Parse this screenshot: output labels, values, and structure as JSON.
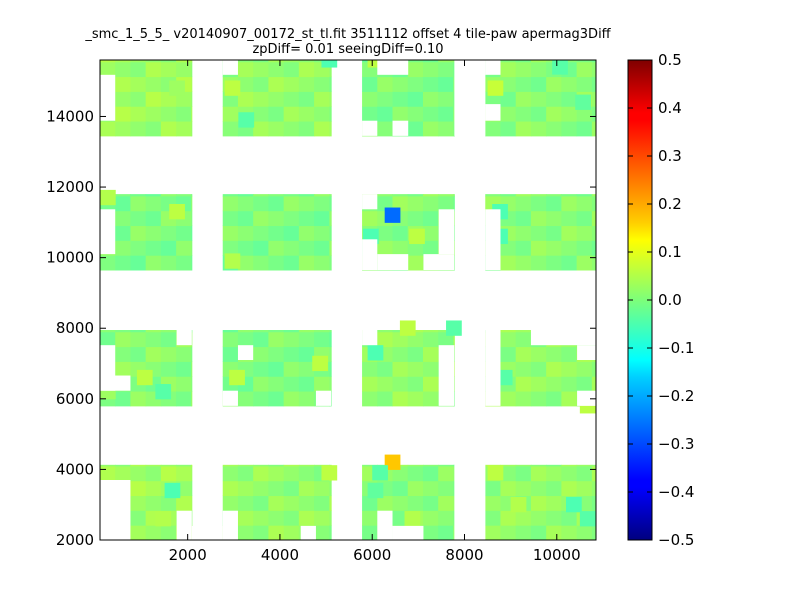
{
  "chart_data": {
    "type": "heatmap",
    "title_line1": "_smc_1_5_5_ v20140907_00172_st_tl.fit 3511112 offset 4 tile-paw apermag3Diff",
    "title_line2": "zpDiff= 0.01 seeingDiff=0.10",
    "xlim": [
      100,
      10850
    ],
    "ylim": [
      2000,
      15600
    ],
    "x_ticks": [
      2000,
      4000,
      6000,
      8000,
      10000
    ],
    "y_ticks": [
      2000,
      4000,
      6000,
      8000,
      10000,
      12000,
      14000
    ],
    "colorbar": {
      "colormap": "jet",
      "range": [
        -0.5,
        0.5
      ],
      "ticks": [
        -0.5,
        -0.4,
        -0.3,
        -0.2,
        -0.1,
        0.0,
        0.1,
        0.2,
        0.3,
        0.4,
        0.5
      ],
      "tick_labels": [
        "−0.5",
        "−0.4",
        "−0.3",
        "−0.2",
        "−0.1",
        "0.0",
        "0.1",
        "0.2",
        "0.3",
        "0.4",
        "0.5"
      ]
    },
    "cell_size": [
      330,
      420
    ],
    "blocks": [
      {
        "x0": 100,
        "x1": 2090,
        "y0": 2000,
        "y1": 4130,
        "value": 0.03
      },
      {
        "x0": 2760,
        "x1": 5110,
        "y0": 2000,
        "y1": 4130,
        "value": 0.02
      },
      {
        "x0": 5780,
        "x1": 7780,
        "y0": 2000,
        "y1": 4130,
        "value": 0.01
      },
      {
        "x0": 8450,
        "x1": 10850,
        "y0": 2000,
        "y1": 4130,
        "value": 0.02
      },
      {
        "x0": 100,
        "x1": 2090,
        "y0": 5800,
        "y1": 7950,
        "value": 0.01
      },
      {
        "x0": 2760,
        "x1": 5110,
        "y0": 5800,
        "y1": 7950,
        "value": 0.0
      },
      {
        "x0": 5780,
        "x1": 7780,
        "y0": 5800,
        "y1": 7950,
        "value": 0.02
      },
      {
        "x0": 8450,
        "x1": 10850,
        "y0": 5800,
        "y1": 7950,
        "value": 0.02
      },
      {
        "x0": 100,
        "x1": 2090,
        "y0": 9650,
        "y1": 11800,
        "value": 0.0
      },
      {
        "x0": 2760,
        "x1": 5110,
        "y0": 9650,
        "y1": 11800,
        "value": 0.0
      },
      {
        "x0": 5780,
        "x1": 7780,
        "y0": 9650,
        "y1": 11800,
        "value": 0.01
      },
      {
        "x0": 8450,
        "x1": 10850,
        "y0": 9650,
        "y1": 11800,
        "value": 0.01
      },
      {
        "x0": 100,
        "x1": 2090,
        "y0": 13450,
        "y1": 15600,
        "value": 0.03
      },
      {
        "x0": 2760,
        "x1": 5110,
        "y0": 13450,
        "y1": 15600,
        "value": 0.02
      },
      {
        "x0": 5780,
        "x1": 7780,
        "y0": 13450,
        "y1": 15600,
        "value": 0.0
      },
      {
        "x0": 8450,
        "x1": 10850,
        "y0": 13450,
        "y1": 15600,
        "value": 0.01
      }
    ],
    "missing": [
      {
        "x0": 100,
        "x1": 760,
        "y0": 2000,
        "y1": 3700
      },
      {
        "x0": 2090,
        "x1": 2760,
        "y0": 2000,
        "y1": 2400
      },
      {
        "x0": 1760,
        "x1": 2090,
        "y0": 2000,
        "y1": 2830
      },
      {
        "x0": 2760,
        "x1": 3090,
        "y0": 2000,
        "y1": 2830
      },
      {
        "x0": 4450,
        "x1": 4780,
        "y0": 2000,
        "y1": 2400
      },
      {
        "x0": 6110,
        "x1": 6440,
        "y0": 2000,
        "y1": 2830
      },
      {
        "x0": 6440,
        "x1": 7110,
        "y0": 2000,
        "y1": 2400
      },
      {
        "x0": 7780,
        "x1": 8450,
        "y0": 2000,
        "y1": 4130
      },
      {
        "x0": 100,
        "x1": 430,
        "y0": 6230,
        "y1": 7520
      },
      {
        "x0": 100,
        "x1": 760,
        "y0": 6230,
        "y1": 6660
      },
      {
        "x0": 1760,
        "x1": 2090,
        "y0": 7520,
        "y1": 7950
      },
      {
        "x0": 2760,
        "x1": 3090,
        "y0": 5800,
        "y1": 6230
      },
      {
        "x0": 3090,
        "x1": 3420,
        "y0": 7100,
        "y1": 7520
      },
      {
        "x0": 4780,
        "x1": 5110,
        "y0": 5800,
        "y1": 6230
      },
      {
        "x0": 5780,
        "x1": 6110,
        "y0": 7520,
        "y1": 7950
      },
      {
        "x0": 7440,
        "x1": 7780,
        "y0": 5800,
        "y1": 7520
      },
      {
        "x0": 8450,
        "x1": 8780,
        "y0": 5800,
        "y1": 7950
      },
      {
        "x0": 9440,
        "x1": 10850,
        "y0": 7520,
        "y1": 7950
      },
      {
        "x0": 10440,
        "x1": 10850,
        "y0": 7100,
        "y1": 7520
      },
      {
        "x0": 10440,
        "x1": 10850,
        "y0": 5800,
        "y1": 6230
      },
      {
        "x0": 100,
        "x1": 430,
        "y0": 10100,
        "y1": 11370
      },
      {
        "x0": 5780,
        "x1": 6110,
        "y0": 11370,
        "y1": 11800
      },
      {
        "x0": 5780,
        "x1": 6110,
        "y0": 9650,
        "y1": 10520
      },
      {
        "x0": 6110,
        "x1": 6780,
        "y0": 9650,
        "y1": 10100
      },
      {
        "x0": 7110,
        "x1": 7780,
        "y0": 9650,
        "y1": 10100
      },
      {
        "x0": 7440,
        "x1": 7780,
        "y0": 10100,
        "y1": 11370
      },
      {
        "x0": 8450,
        "x1": 8780,
        "y0": 9650,
        "y1": 11370
      },
      {
        "x0": 100,
        "x1": 430,
        "y0": 13880,
        "y1": 15180
      },
      {
        "x0": 2760,
        "x1": 3090,
        "y0": 15180,
        "y1": 15600
      },
      {
        "x0": 5780,
        "x1": 6110,
        "y0": 13450,
        "y1": 13880
      },
      {
        "x0": 6110,
        "x1": 6780,
        "y0": 15180,
        "y1": 15600
      },
      {
        "x0": 6440,
        "x1": 6780,
        "y0": 13450,
        "y1": 13880
      },
      {
        "x0": 7780,
        "x1": 8450,
        "y0": 13450,
        "y1": 15600
      },
      {
        "x0": 8450,
        "x1": 8780,
        "y0": 15180,
        "y1": 15600
      },
      {
        "x0": 8450,
        "x1": 8780,
        "y0": 13880,
        "y1": 14350
      }
    ],
    "cells": [
      {
        "x": 6270,
        "y": 4000,
        "value": 0.18
      },
      {
        "x": 6270,
        "y": 11000,
        "value": -0.27
      },
      {
        "x": 100,
        "y": 6000,
        "value": 0.03
      },
      {
        "x": 1300,
        "y": 6000,
        "value": -0.04
      },
      {
        "x": 900,
        "y": 6400,
        "value": 0.06
      },
      {
        "x": 2900,
        "y": 6400,
        "value": 0.06
      },
      {
        "x": 4700,
        "y": 6800,
        "value": 0.06
      },
      {
        "x": 6600,
        "y": 7800,
        "value": 0.06
      },
      {
        "x": 7600,
        "y": 7800,
        "value": -0.04
      },
      {
        "x": 5900,
        "y": 7100,
        "value": -0.05
      },
      {
        "x": 8700,
        "y": 6400,
        "value": -0.04
      },
      {
        "x": 10500,
        "y": 5600,
        "value": 0.06
      },
      {
        "x": 100,
        "y": 11500,
        "value": 0.05
      },
      {
        "x": 1600,
        "y": 11100,
        "value": 0.06
      },
      {
        "x": 6800,
        "y": 10400,
        "value": 0.06
      },
      {
        "x": 8600,
        "y": 11100,
        "value": -0.05
      },
      {
        "x": 8600,
        "y": 10400,
        "value": -0.05
      },
      {
        "x": 5800,
        "y": 10400,
        "value": -0.05
      },
      {
        "x": 2800,
        "y": 9700,
        "value": 0.05
      },
      {
        "x": 1500,
        "y": 3200,
        "value": -0.05
      },
      {
        "x": 1300,
        "y": 2400,
        "value": 0.05
      },
      {
        "x": 4900,
        "y": 3700,
        "value": 0.06
      },
      {
        "x": 6000,
        "y": 3700,
        "value": -0.04
      },
      {
        "x": 8500,
        "y": 3700,
        "value": 0.06
      },
      {
        "x": 10200,
        "y": 2800,
        "value": -0.05
      },
      {
        "x": 9000,
        "y": 2800,
        "value": 0.05
      },
      {
        "x": 5900,
        "y": 3200,
        "value": -0.03
      },
      {
        "x": 2800,
        "y": 14600,
        "value": 0.06
      },
      {
        "x": 4900,
        "y": 15400,
        "value": -0.05
      },
      {
        "x": 5900,
        "y": 15400,
        "value": 0.06
      },
      {
        "x": 8500,
        "y": 14600,
        "value": 0.07
      },
      {
        "x": 7800,
        "y": 13700,
        "value": -0.06
      },
      {
        "x": 9900,
        "y": 15200,
        "value": -0.04
      },
      {
        "x": 10400,
        "y": 14200,
        "value": -0.03
      },
      {
        "x": 3100,
        "y": 13700,
        "value": -0.04
      },
      {
        "x": 1600,
        "y": 14600,
        "value": 0.03
      },
      {
        "x": 10500,
        "y": 2400,
        "value": -0.04
      },
      {
        "x": 6700,
        "y": 2400,
        "value": 0.05
      }
    ]
  }
}
